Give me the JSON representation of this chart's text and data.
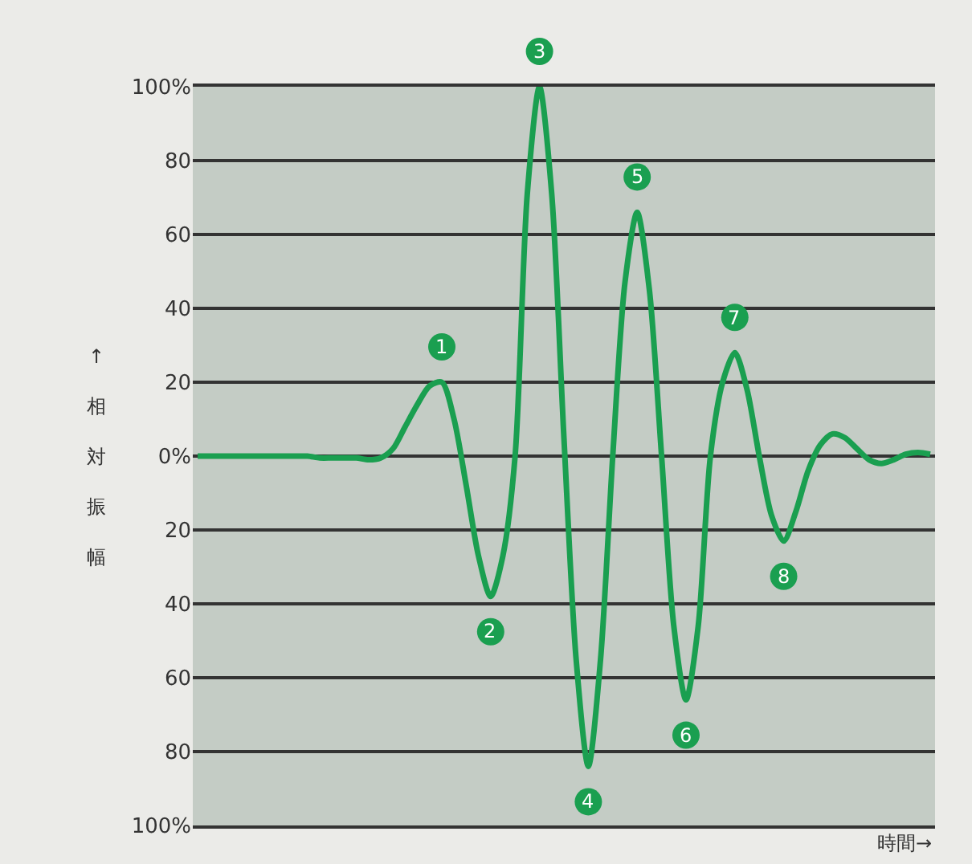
{
  "chart_data": {
    "type": "line",
    "xlabel": "時間→",
    "ylabel": "↑相対振幅",
    "categories": [
      null,
      null,
      null,
      null,
      null,
      null,
      null,
      null,
      null,
      null,
      null,
      null,
      null,
      null,
      null,
      null,
      null,
      null,
      null,
      null,
      null,
      null,
      null,
      null,
      null,
      null,
      null,
      null,
      null,
      null,
      null,
      null,
      null,
      null,
      null,
      null,
      null,
      null,
      null,
      null,
      null,
      null,
      null,
      null,
      null,
      null,
      null,
      null,
      null,
      null,
      null,
      null,
      null,
      null,
      null,
      null,
      null,
      null,
      null,
      null,
      null
    ],
    "series": [
      {
        "color": "#1a9f50",
        "values": [
          0,
          0,
          0,
          0,
          0,
          0,
          0,
          0,
          0,
          0,
          -0.5,
          -0.5,
          -0.5,
          -0.5,
          -1,
          -0.5,
          2,
          8,
          14,
          19,
          20,
          10,
          -8,
          -27,
          -38,
          -27,
          0,
          71,
          100,
          71,
          5,
          -55,
          -84,
          -55,
          0,
          47,
          66,
          45,
          0,
          -46,
          -66,
          -46,
          0,
          20,
          28,
          18,
          0,
          -16,
          -23,
          -15,
          -4,
          3,
          6,
          5,
          2,
          -1,
          -2,
          -1,
          0.5,
          1,
          0.5
        ]
      }
    ],
    "ylim": [
      -100,
      100
    ],
    "yticks": [
      {
        "value": 100,
        "label": "100%"
      },
      80,
      60,
      40,
      20,
      {
        "value": 0,
        "label": "0%"
      },
      {
        "value": -20,
        "label": "20"
      },
      {
        "value": -40,
        "label": "40"
      },
      {
        "value": -60,
        "label": "60"
      },
      {
        "value": -80,
        "label": "80"
      },
      {
        "value": -100,
        "label": "100%"
      }
    ],
    "grid": "y",
    "marker": "none",
    "line_style": "solid",
    "tick_labels": "y",
    "annotations": [
      {
        "text": "1",
        "y": 20
      },
      {
        "text": "2",
        "y": -38
      },
      {
        "text": "3",
        "y": 100
      },
      {
        "text": "4",
        "y": -84
      },
      {
        "text": "5",
        "y": 66
      },
      {
        "text": "6",
        "y": -66
      },
      {
        "text": "7",
        "y": 28
      },
      {
        "text": "8",
        "y": -23
      }
    ]
  }
}
